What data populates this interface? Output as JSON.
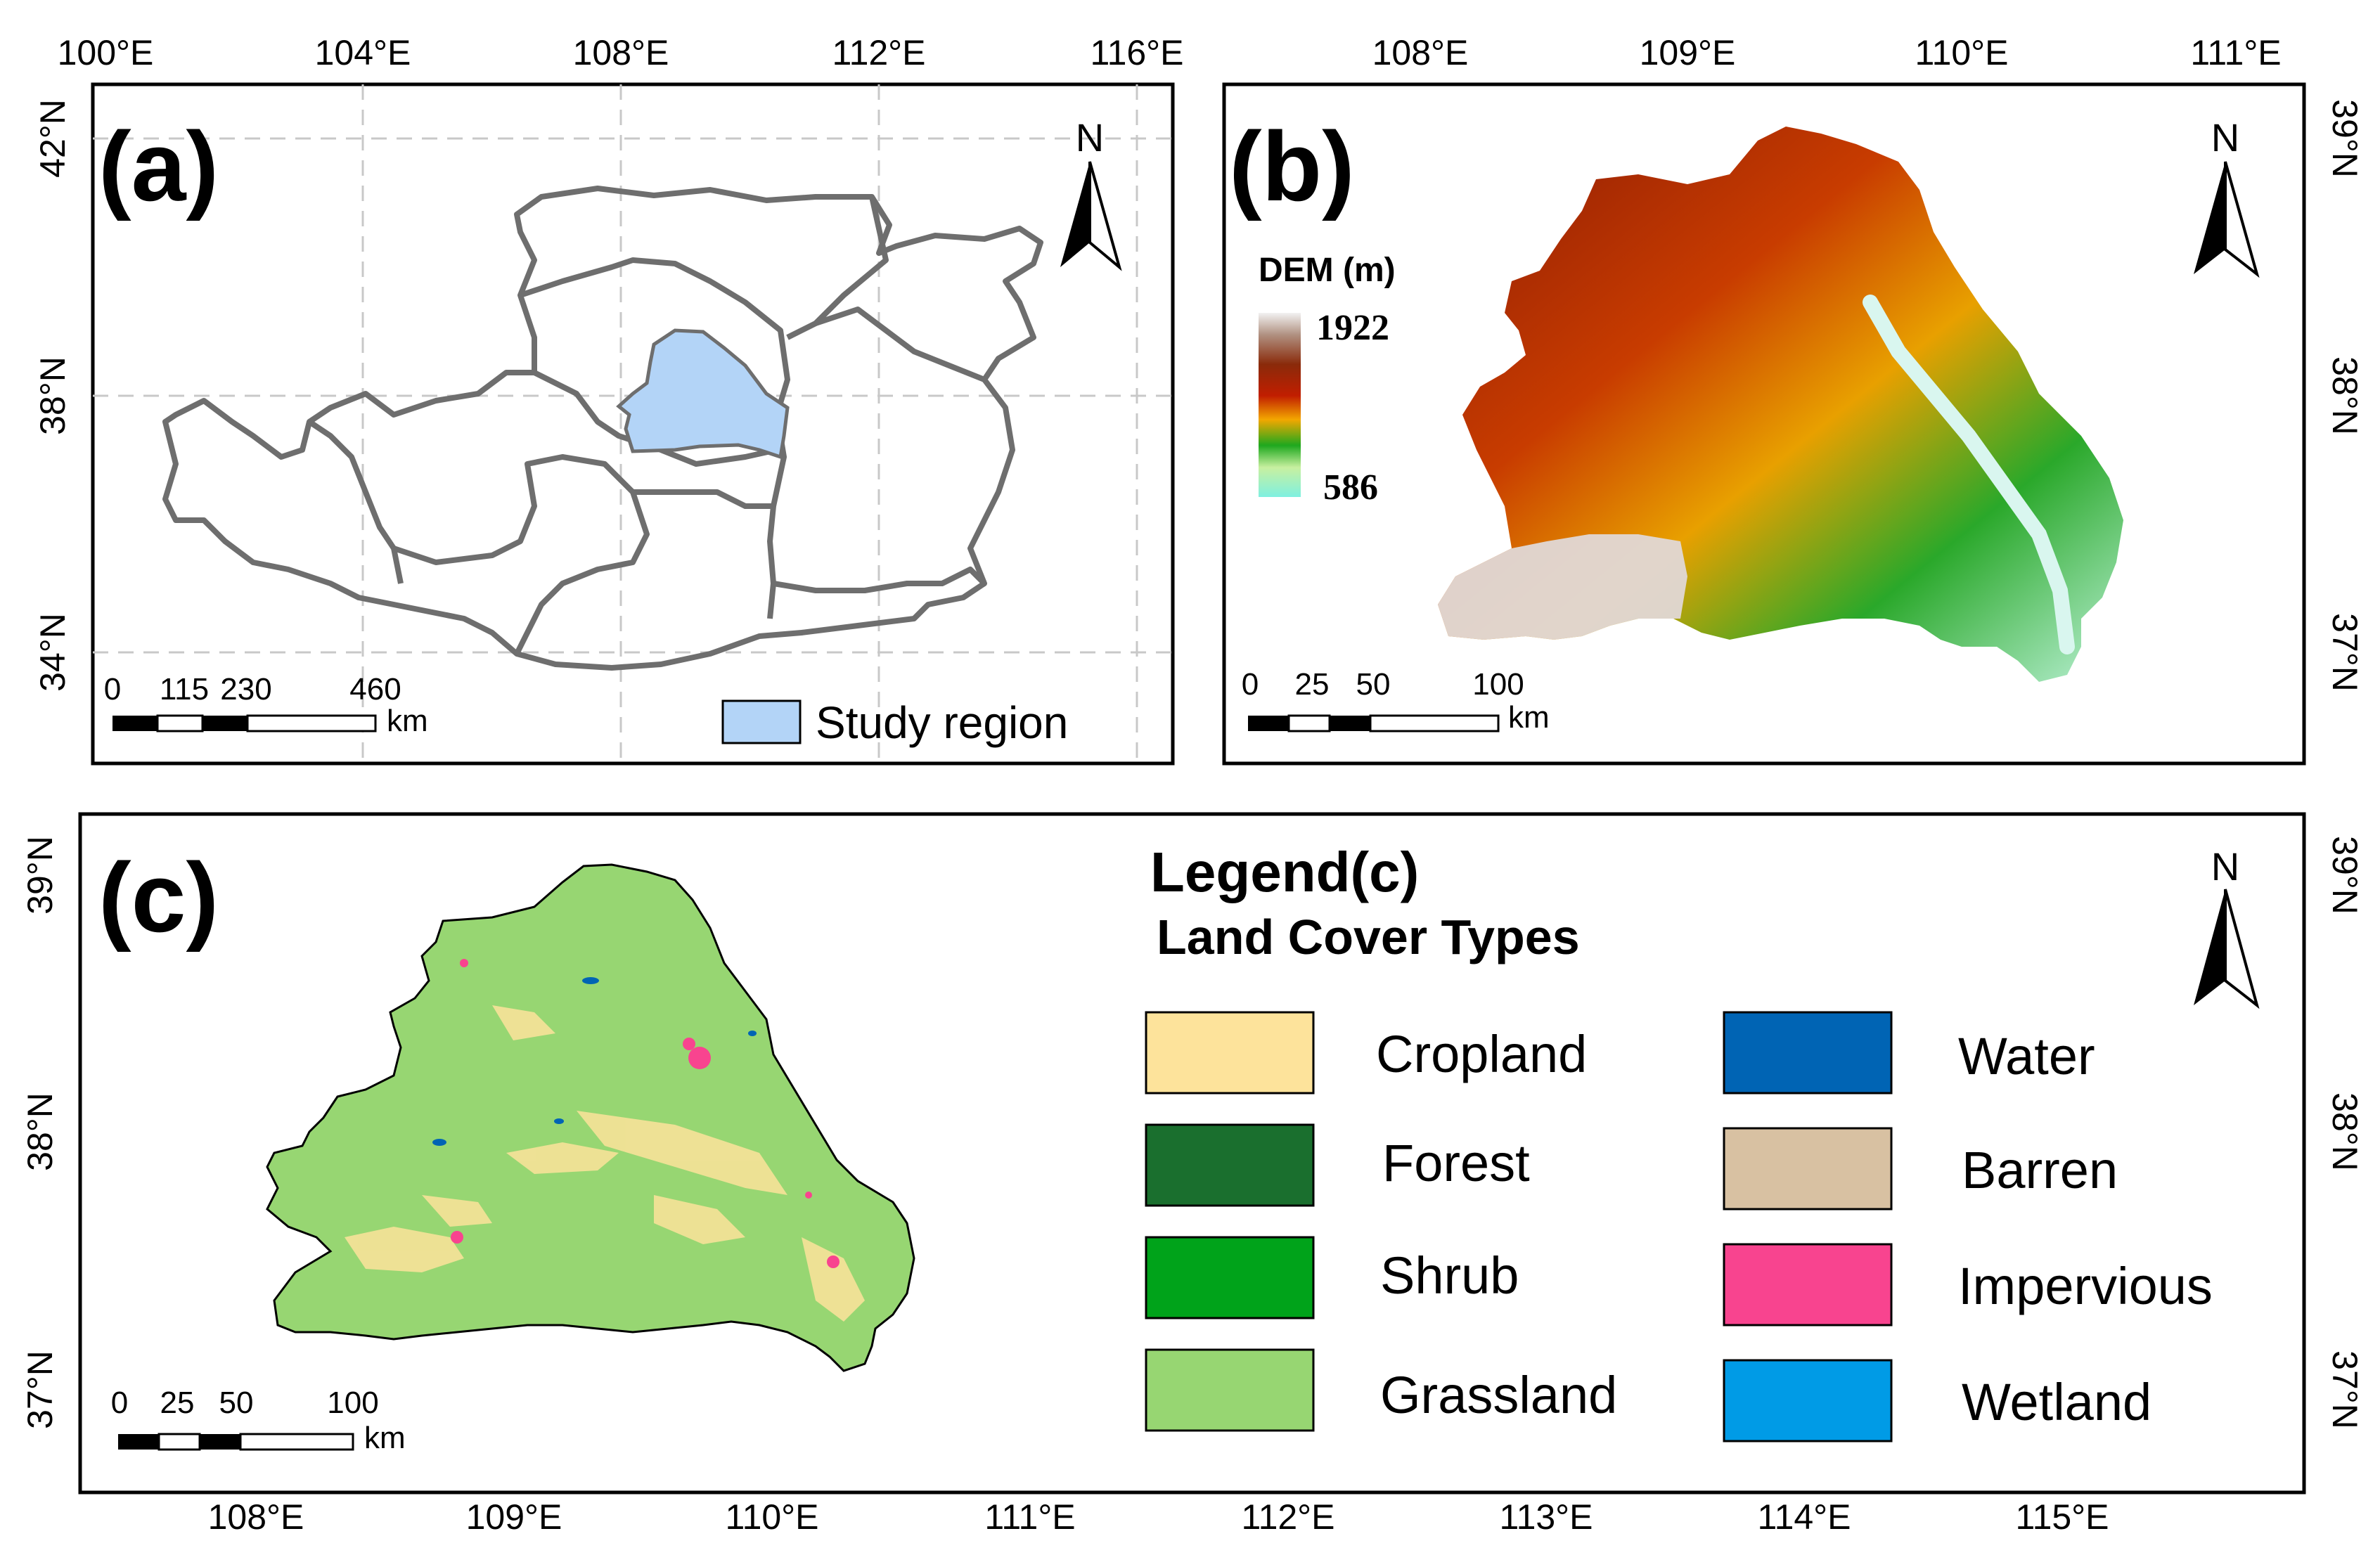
{
  "panel_a": {
    "label": "(a)",
    "lon_ticks": [
      "100°E",
      "104°E",
      "108°E",
      "112°E",
      "116°E"
    ],
    "lat_ticks": [
      "42°N",
      "38°N",
      "34°N"
    ],
    "scale": {
      "ticks": [
        "0",
        "115",
        "230",
        "460"
      ],
      "unit": "km"
    },
    "north": "N",
    "legend_label": "Study region",
    "study_region_color": "#b3d4f7"
  },
  "panel_b": {
    "label": "(b)",
    "lon_ticks": [
      "108°E",
      "109°E",
      "110°E",
      "111°E"
    ],
    "lat_ticks": [
      "39°N",
      "38°N",
      "37°N"
    ],
    "scale": {
      "ticks": [
        "0",
        "25",
        "50",
        "100"
      ],
      "unit": "km"
    },
    "north": "N",
    "dem": {
      "title": "DEM (m)",
      "max": "1922",
      "min": "586"
    }
  },
  "panel_c": {
    "label": "(c)",
    "lon_ticks": [
      "108°E",
      "109°E",
      "110°E",
      "111°E",
      "112°E",
      "113°E",
      "114°E",
      "115°E"
    ],
    "lat_ticks": [
      "39°N",
      "38°N",
      "37°N"
    ],
    "scale": {
      "ticks": [
        "0",
        "25",
        "50",
        "100"
      ],
      "unit": "km"
    },
    "north": "N",
    "legend": {
      "title": "Legend(c)",
      "subtitle": "Land Cover Types",
      "items": [
        {
          "name": "Cropland",
          "color": "#fde39b"
        },
        {
          "name": "Forest",
          "color": "#1a6f2e"
        },
        {
          "name": "Shrub",
          "color": "#00a31a"
        },
        {
          "name": "Grassland",
          "color": "#97d672"
        },
        {
          "name": "Water",
          "color": "#0064b4"
        },
        {
          "name": "Barren",
          "color": "#d8c1a2"
        },
        {
          "name": "Impervious",
          "color": "#f8448f"
        },
        {
          "name": "Wetland",
          "color": "#009be6"
        }
      ]
    }
  }
}
